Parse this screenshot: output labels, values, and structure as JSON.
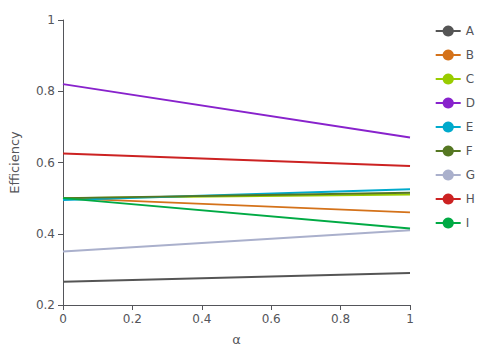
{
  "chart_data": {
    "type": "line",
    "xlabel": "α",
    "ylabel": "Efficiency",
    "x": [
      0,
      1
    ],
    "xlim": [
      0,
      1
    ],
    "ylim": [
      0.2,
      1
    ],
    "xticks": [
      0,
      0.2,
      0.4,
      0.6,
      0.8,
      1
    ],
    "yticks": [
      0.2,
      0.4,
      0.6,
      0.8,
      1
    ],
    "grid": false,
    "legend": "right",
    "marker": "none",
    "series": [
      {
        "name": "A",
        "color": "#555555",
        "values": [
          0.265,
          0.29
        ]
      },
      {
        "name": "B",
        "color": "#d4721a",
        "values": [
          0.5,
          0.46
        ]
      },
      {
        "name": "C",
        "color": "#99cc00",
        "values": [
          0.5,
          0.51
        ]
      },
      {
        "name": "D",
        "color": "#8822cc",
        "values": [
          0.82,
          0.67
        ]
      },
      {
        "name": "E",
        "color": "#00aacc",
        "values": [
          0.495,
          0.525
        ]
      },
      {
        "name": "F",
        "color": "#557722",
        "values": [
          0.5,
          0.515
        ]
      },
      {
        "name": "G",
        "color": "#aab0cc",
        "values": [
          0.35,
          0.41
        ]
      },
      {
        "name": "H",
        "color": "#cc2222",
        "values": [
          0.625,
          0.59
        ]
      },
      {
        "name": "I",
        "color": "#00aa44",
        "values": [
          0.5,
          0.415
        ]
      }
    ]
  }
}
